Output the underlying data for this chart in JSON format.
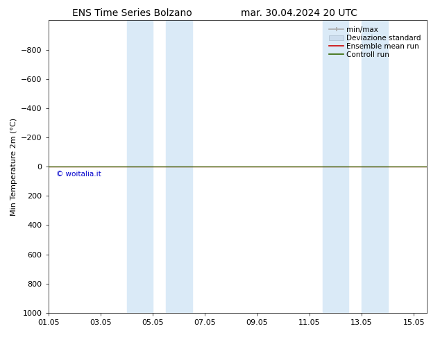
{
  "title": "ENS Time Series Bolzano",
  "title2": "mar. 30.04.2024 20 UTC",
  "ylabel": "Min Temperature 2m (°C)",
  "xlim_start": 0,
  "xlim_end": 14.5,
  "ylim_bottom": 1000,
  "ylim_top": -1000,
  "yticks": [
    -800,
    -600,
    -400,
    -200,
    0,
    200,
    400,
    600,
    800,
    1000
  ],
  "xtick_labels": [
    "01.05",
    "03.05",
    "05.05",
    "07.05",
    "09.05",
    "11.05",
    "13.05",
    "15.05"
  ],
  "xtick_positions": [
    0,
    2,
    4,
    6,
    8,
    10,
    12,
    14
  ],
  "bg_color": "#ffffff",
  "plot_bg_color": "#ffffff",
  "blue_bands": [
    [
      3.0,
      4.0
    ],
    [
      4.5,
      5.5
    ],
    [
      10.5,
      11.5
    ],
    [
      12.0,
      13.0
    ]
  ],
  "blue_band_color": "#daeaf7",
  "control_run_y": 0,
  "control_run_color": "#336600",
  "ensemble_mean_color": "#cc0000",
  "minmax_color": "#aaaaaa",
  "std_color": "#cccccc",
  "watermark_text": "© woitalia.it",
  "watermark_color": "#0000cc",
  "title_fontsize": 10,
  "axis_fontsize": 8,
  "tick_fontsize": 8,
  "legend_fontsize": 7.5
}
